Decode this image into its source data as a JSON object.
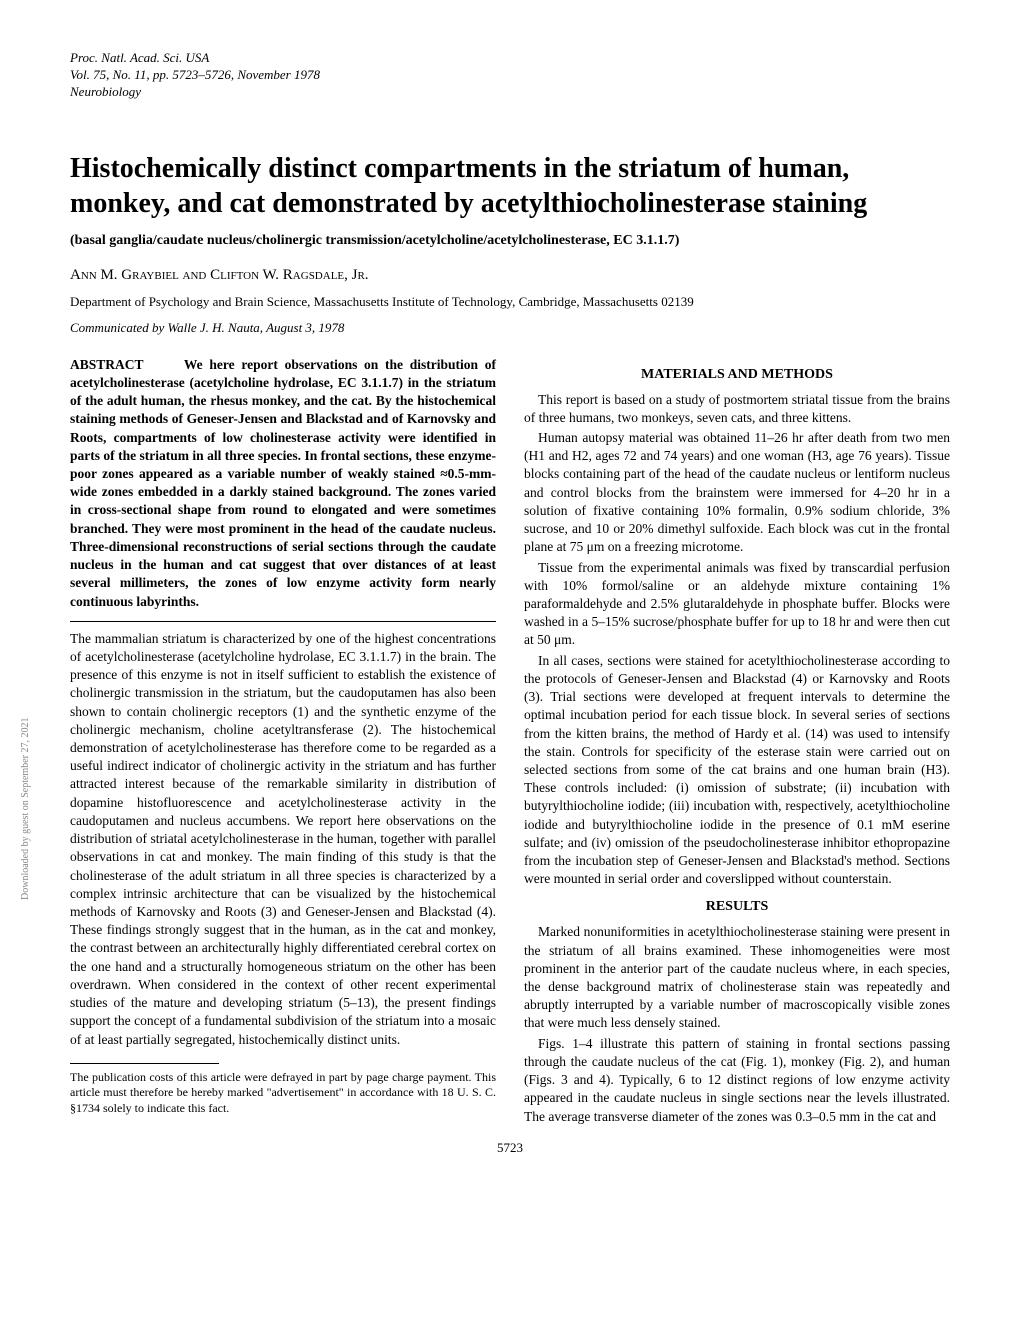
{
  "header": {
    "line1": "Proc. Natl. Acad. Sci. USA",
    "line2": "Vol. 75, No. 11, pp. 5723–5726, November 1978",
    "line3": "Neurobiology"
  },
  "title": "Histochemically distinct compartments in the striatum of human, monkey, and cat demonstrated by acetylthiocholinesterase staining",
  "subtitle": "(basal ganglia/caudate nucleus/cholinergic transmission/acetylcholine/acetylcholinesterase, EC 3.1.1.7)",
  "authors": "Ann M. Graybiel and Clifton W. Ragsdale, Jr.",
  "affiliation": "Department of Psychology and Brain Science, Massachusetts Institute of Technology, Cambridge, Massachusetts 02139",
  "communicated": "Communicated by Walle J. H. Nauta, August 3, 1978",
  "abstract": {
    "label": "ABSTRACT",
    "text": "We here report observations on the distribution of acetylcholinesterase (acetylcholine hydrolase, EC 3.1.1.7) in the striatum of the adult human, the rhesus monkey, and the cat. By the histochemical staining methods of Geneser-Jensen and Blackstad and of Karnovsky and Roots, compartments of low cholinesterase activity were identified in parts of the striatum in all three species. In frontal sections, these enzyme-poor zones appeared as a variable number of weakly stained ≈0.5-mm-wide zones embedded in a darkly stained background. The zones varied in cross-sectional shape from round to elongated and were sometimes branched. They were most prominent in the head of the caudate nucleus. Three-dimensional reconstructions of serial sections through the caudate nucleus in the human and cat suggest that over distances of at least several millimeters, the zones of low enzyme activity form nearly continuous labyrinths."
  },
  "intro": "The mammalian striatum is characterized by one of the highest concentrations of acetylcholinesterase (acetylcholine hydrolase, EC 3.1.1.7) in the brain. The presence of this enzyme is not in itself sufficient to establish the existence of cholinergic transmission in the striatum, but the caudoputamen has also been shown to contain cholinergic receptors (1) and the synthetic enzyme of the cholinergic mechanism, choline acetyltransferase (2). The histochemical demonstration of acetylcholinesterase has therefore come to be regarded as a useful indirect indicator of cholinergic activity in the striatum and has further attracted interest because of the remarkable similarity in distribution of dopamine histofluorescence and acetylcholinesterase activity in the caudoputamen and nucleus accumbens. We report here observations on the distribution of striatal acetylcholinesterase in the human, together with parallel observations in cat and monkey. The main finding of this study is that the cholinesterase of the adult striatum in all three species is characterized by a complex intrinsic architecture that can be visualized by the histochemical methods of Karnovsky and Roots (3) and Geneser-Jensen and Blackstad (4). These findings strongly suggest that in the human, as in the cat and monkey, the contrast between an architecturally highly differentiated cerebral cortex on the one hand and a structurally homogeneous striatum on the other has been overdrawn. When considered in the context of other recent experimental studies of the mature and developing striatum (5–13), the present findings support the concept of a fundamental subdivision of the striatum into a mosaic of at least partially segregated, histochemically distinct units.",
  "footnote": "The publication costs of this article were defrayed in part by page charge payment. This article must therefore be hereby marked \"advertisement\" in accordance with 18 U. S. C. §1734 solely to indicate this fact.",
  "sections": {
    "materials": {
      "heading": "MATERIALS AND METHODS",
      "p1": "This report is based on a study of postmortem striatal tissue from the brains of three humans, two monkeys, seven cats, and three kittens.",
      "p2": "Human autopsy material was obtained 11–26 hr after death from two men (H1 and H2, ages 72 and 74 years) and one woman (H3, age 76 years). Tissue blocks containing part of the head of the caudate nucleus or lentiform nucleus and control blocks from the brainstem were immersed for 4–20 hr in a solution of fixative containing 10% formalin, 0.9% sodium chloride, 3% sucrose, and 10 or 20% dimethyl sulfoxide. Each block was cut in the frontal plane at 75 μm on a freezing microtome.",
      "p3": "Tissue from the experimental animals was fixed by transcardial perfusion with 10% formol/saline or an aldehyde mixture containing 1% paraformaldehyde and 2.5% glutaraldehyde in phosphate buffer. Blocks were washed in a 5–15% sucrose/phosphate buffer for up to 18 hr and were then cut at 50 μm.",
      "p4": "In all cases, sections were stained for acetylthiocholinesterase according to the protocols of Geneser-Jensen and Blackstad (4) or Karnovsky and Roots (3). Trial sections were developed at frequent intervals to determine the optimal incubation period for each tissue block. In several series of sections from the kitten brains, the method of Hardy et al. (14) was used to intensify the stain. Controls for specificity of the esterase stain were carried out on selected sections from some of the cat brains and one human brain (H3). These controls included: (i) omission of substrate; (ii) incubation with butyrylthiocholine iodide; (iii) incubation with, respectively, acetylthiocholine iodide and butyrylthiocholine iodide in the presence of 0.1 mM eserine sulfate; and (iv) omission of the pseudocholinesterase inhibitor ethopropazine from the incubation step of Geneser-Jensen and Blackstad's method. Sections were mounted in serial order and coverslipped without counterstain."
    },
    "results": {
      "heading": "RESULTS",
      "p1": "Marked nonuniformities in acetylthiocholinesterase staining were present in the striatum of all brains examined. These inhomogeneities were most prominent in the anterior part of the caudate nucleus where, in each species, the dense background matrix of cholinesterase stain was repeatedly and abruptly interrupted by a variable number of macroscopically visible zones that were much less densely stained.",
      "p2": "Figs. 1–4 illustrate this pattern of staining in frontal sections passing through the caudate nucleus of the cat (Fig. 1), monkey (Fig. 2), and human (Figs. 3 and 4). Typically, 6 to 12 distinct regions of low enzyme activity appeared in the caudate nucleus in single sections near the levels illustrated. The average transverse diameter of the zones was 0.3–0.5 mm in the cat and"
    }
  },
  "page_number": "5723",
  "sidebar": "Downloaded by guest on September 27, 2021"
}
